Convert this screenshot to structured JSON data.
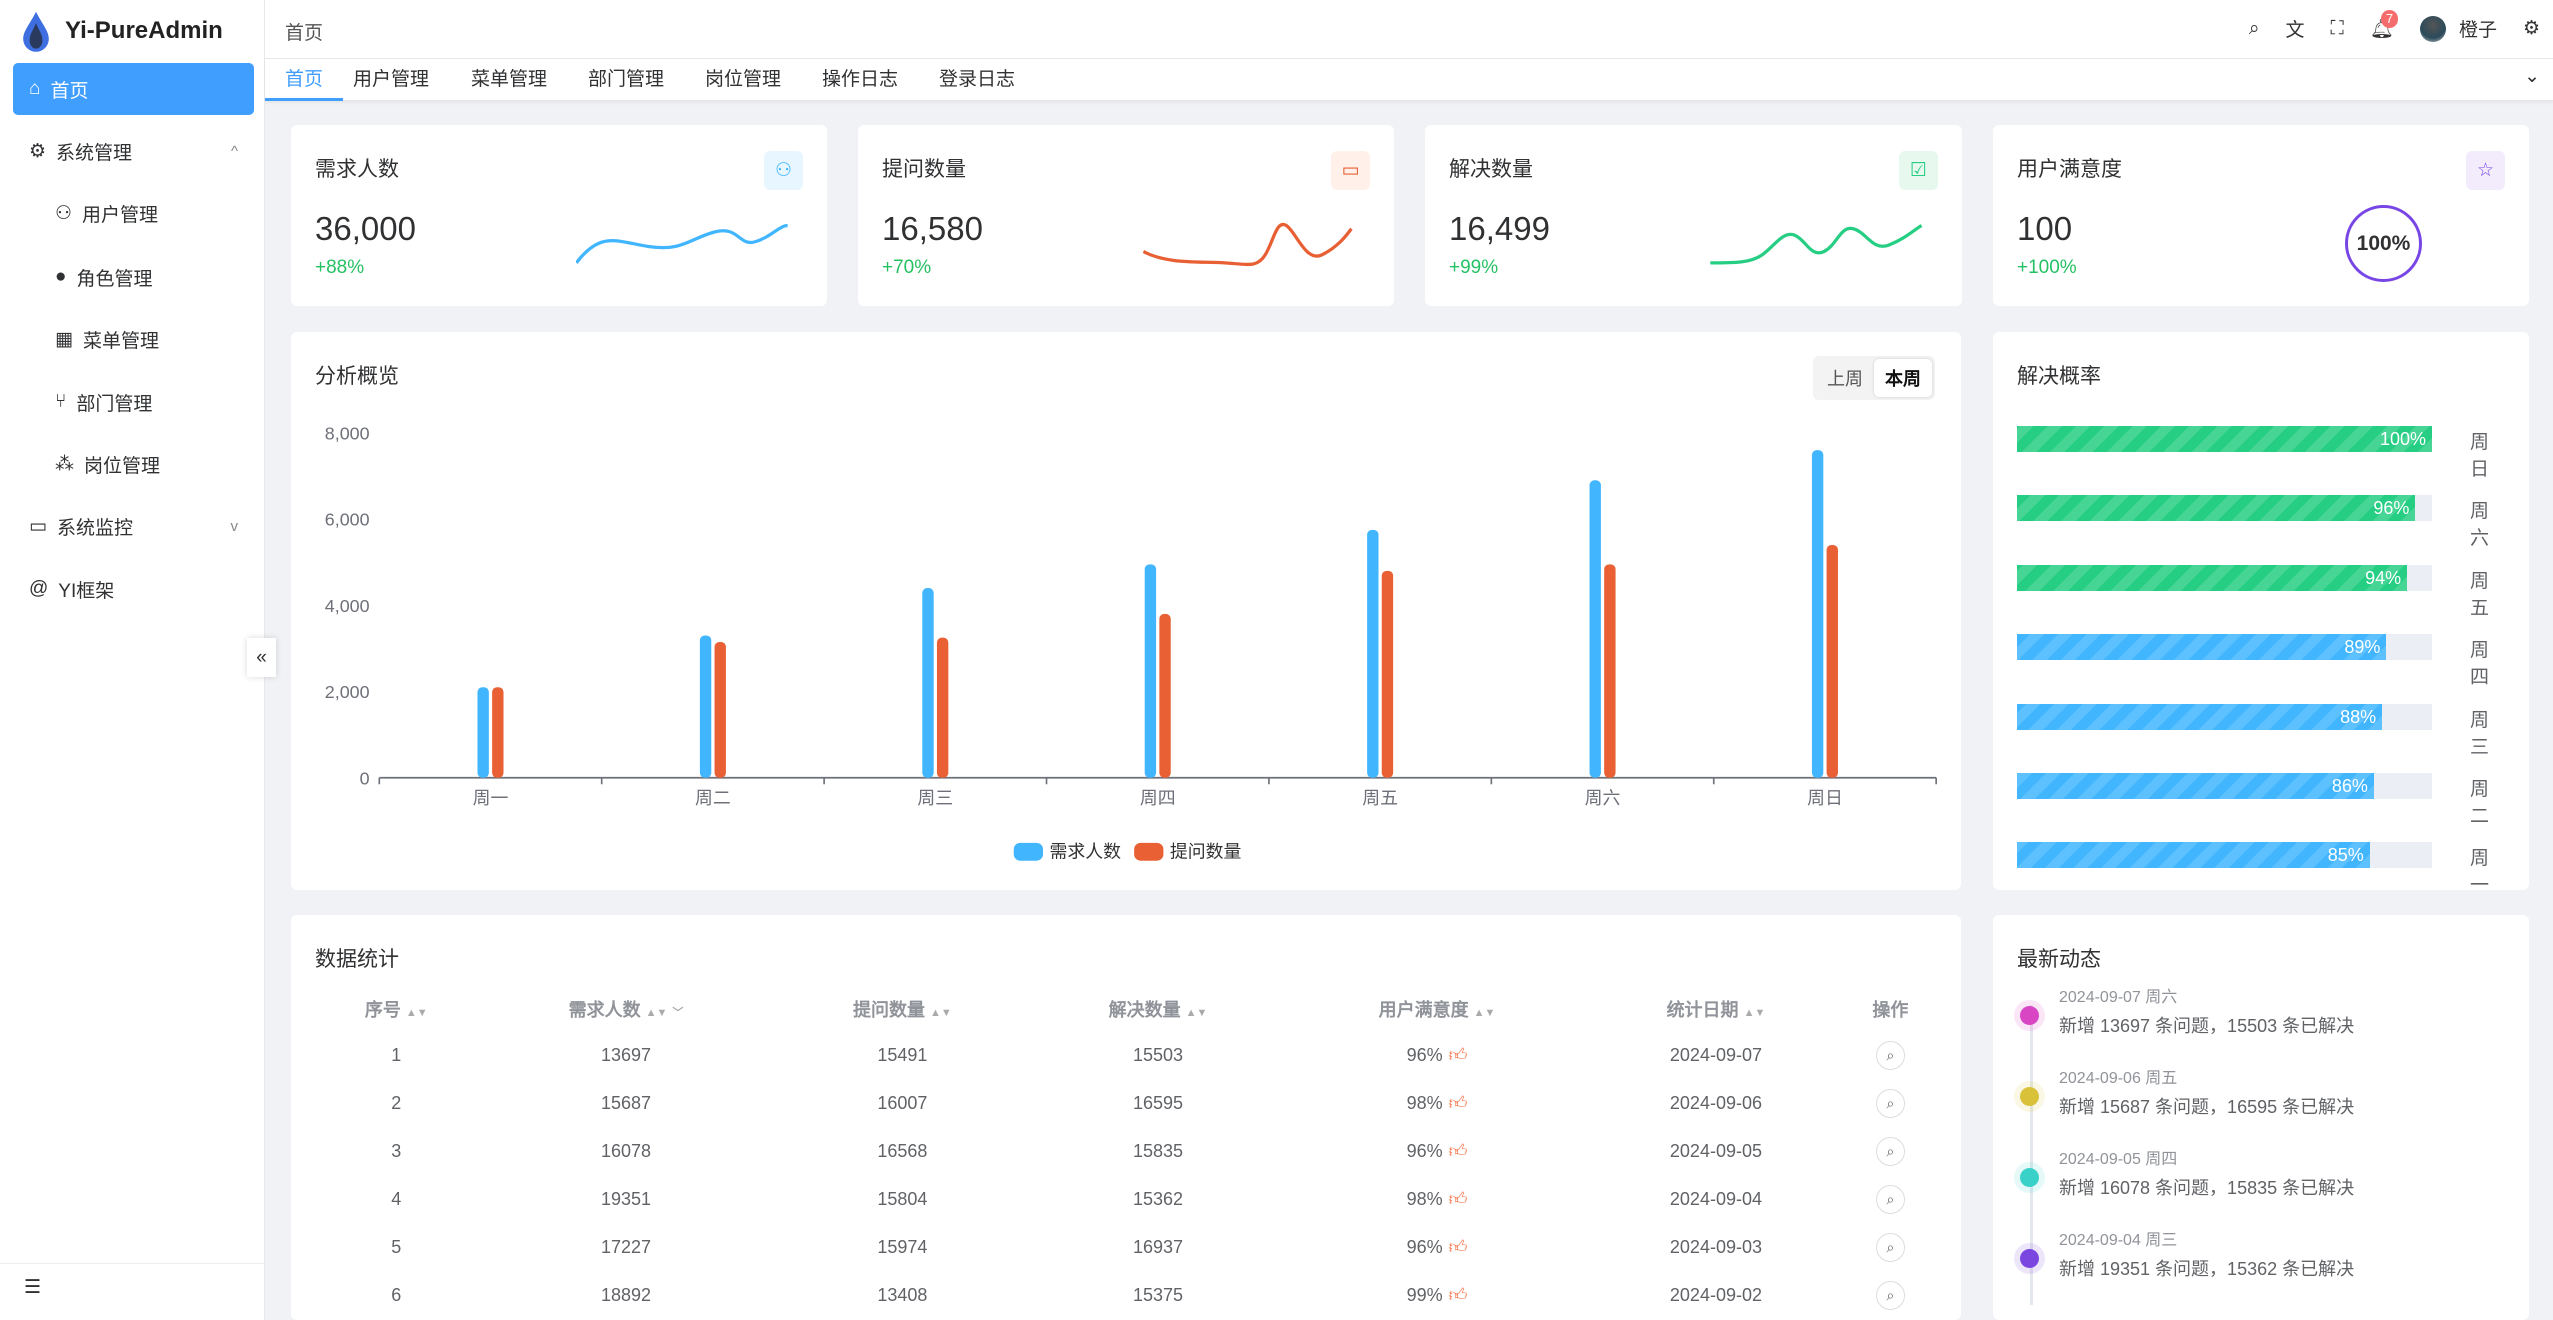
{
  "app": {
    "title": "Yi-PureAdmin"
  },
  "sidebar": {
    "items": [
      {
        "label": "首页",
        "icon": "home-icon"
      },
      {
        "label": "系统管理",
        "icon": "gear-icon"
      },
      {
        "label": "用户管理",
        "icon": "user-icon"
      },
      {
        "label": "角色管理",
        "icon": "role-icon"
      },
      {
        "label": "菜单管理",
        "icon": "grid-icon"
      },
      {
        "label": "部门管理",
        "icon": "branch-icon"
      },
      {
        "label": "岗位管理",
        "icon": "org-icon"
      },
      {
        "label": "系统监控",
        "icon": "monitor-icon"
      },
      {
        "label": "YI框架",
        "icon": "at-icon"
      }
    ],
    "collapse_label": "«"
  },
  "header": {
    "breadcrumb": "首页",
    "notification_count": "7",
    "username": "橙子"
  },
  "tabs": [
    "首页",
    "用户管理",
    "菜单管理",
    "部门管理",
    "岗位管理",
    "操作日志",
    "登录日志"
  ],
  "stats": [
    {
      "title": "需求人数",
      "value": "36,000",
      "change": "+88%",
      "color": "#41b6ff"
    },
    {
      "title": "提问数量",
      "value": "16,580",
      "change": "+70%",
      "color": "#e85f33"
    },
    {
      "title": "解决数量",
      "value": "16,499",
      "change": "+99%",
      "color": "#26ce83"
    },
    {
      "title": "用户满意度",
      "value": "100",
      "change": "+100%",
      "gauge": "100%",
      "color": "#7846e5"
    }
  ],
  "overview": {
    "title": "分析概览",
    "segments": [
      "上周",
      "本周"
    ],
    "selected": "本周"
  },
  "chart_data": {
    "type": "bar",
    "categories": [
      "周一",
      "周二",
      "周三",
      "周四",
      "周五",
      "周六",
      "周日"
    ],
    "series": [
      {
        "name": "需求人数",
        "color": "#41b6ff",
        "values": [
          2100,
          3300,
          4400,
          4950,
          5750,
          6900,
          7600
        ]
      },
      {
        "name": "提问数量",
        "color": "#e86033",
        "values": [
          2100,
          3150,
          3250,
          3800,
          4800,
          4950,
          5400
        ]
      }
    ],
    "yticks": [
      "0",
      "2,000",
      "4,000",
      "6,000",
      "8,000"
    ],
    "ylim": [
      0,
      8000
    ],
    "legend": "bottom"
  },
  "rate": {
    "title": "解决概率",
    "rows": [
      {
        "day": "周日",
        "pct": 100,
        "label": "100%",
        "color": "#26ce83"
      },
      {
        "day": "周六",
        "pct": 96,
        "label": "96%",
        "color": "#26ce83"
      },
      {
        "day": "周五",
        "pct": 94,
        "label": "94%",
        "color": "#26ce83"
      },
      {
        "day": "周四",
        "pct": 89,
        "label": "89%",
        "color": "#41b6ff"
      },
      {
        "day": "周三",
        "pct": 88,
        "label": "88%",
        "color": "#41b6ff"
      },
      {
        "day": "周二",
        "pct": 86,
        "label": "86%",
        "color": "#41b6ff"
      },
      {
        "day": "周一",
        "pct": 85,
        "label": "85%",
        "color": "#41b6ff"
      }
    ]
  },
  "table": {
    "title": "数据统计",
    "columns": [
      "序号",
      "需求人数",
      "提问数量",
      "解决数量",
      "用户满意度",
      "统计日期",
      "操作"
    ],
    "rows": [
      [
        "1",
        "13697",
        "15491",
        "15503",
        "96%",
        "2024-09-07"
      ],
      [
        "2",
        "15687",
        "16007",
        "16595",
        "98%",
        "2024-09-06"
      ],
      [
        "3",
        "16078",
        "16568",
        "15835",
        "96%",
        "2024-09-05"
      ],
      [
        "4",
        "19351",
        "15804",
        "15362",
        "98%",
        "2024-09-04"
      ],
      [
        "5",
        "17227",
        "15974",
        "16937",
        "96%",
        "2024-09-03"
      ],
      [
        "6",
        "18892",
        "13408",
        "15375",
        "99%",
        "2024-09-02"
      ]
    ]
  },
  "latest": {
    "title": "最新动态",
    "items": [
      {
        "date": "2024-09-07 周六",
        "text": "新增 13697 条问题，15503 条已解决",
        "color": "#d846c4"
      },
      {
        "date": "2024-09-06 周五",
        "text": "新增 15687 条问题，16595 条已解决",
        "color": "#d9c23a"
      },
      {
        "date": "2024-09-05 周四",
        "text": "新增 16078 条问题，15835 条已解决",
        "color": "#3ad1c9"
      },
      {
        "date": "2024-09-04 周三",
        "text": "新增 19351 条问题，15362 条已解决",
        "color": "#7b46e0"
      }
    ]
  }
}
